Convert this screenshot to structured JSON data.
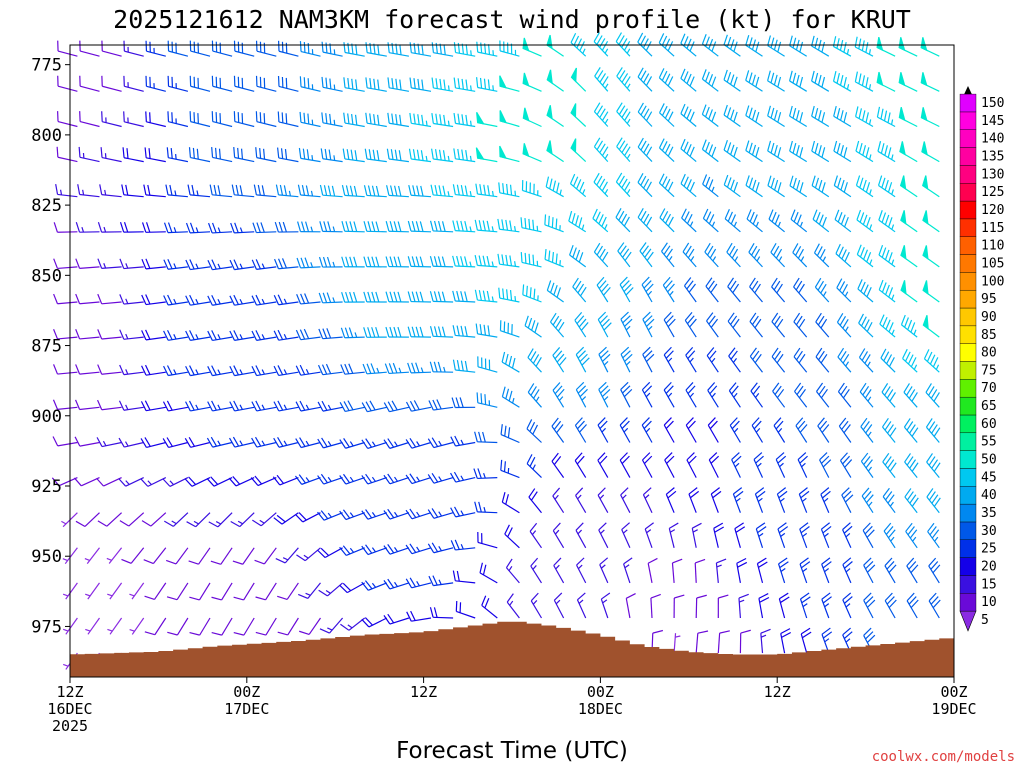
{
  "chart_data": {
    "type": "wind_profile",
    "title": "2025121612 NAM3KM forecast wind profile (kt) for KRUT",
    "xlabel": "Forecast Time (UTC)",
    "credit": "coolwx.com/models",
    "units": "kt",
    "x_range_hours": [
      0,
      60
    ],
    "y_range_hPa": [
      768,
      993
    ],
    "y_ticks": [
      "775",
      "800",
      "825",
      "850",
      "875",
      "900",
      "925",
      "950",
      "975"
    ],
    "x_ticks": [
      {
        "hour": 0,
        "line1": "12Z",
        "line2": "16DEC",
        "line3": "2025"
      },
      {
        "hour": 12,
        "line1": "00Z",
        "line2": "17DEC",
        "line3": ""
      },
      {
        "hour": 24,
        "line1": "12Z",
        "line2": "",
        "line3": ""
      },
      {
        "hour": 36,
        "line1": "00Z",
        "line2": "18DEC",
        "line3": ""
      },
      {
        "hour": 48,
        "line1": "12Z",
        "line2": "",
        "line3": ""
      },
      {
        "hour": 60,
        "line1": "00Z",
        "line2": "19DEC",
        "line3": ""
      }
    ],
    "colorbar": {
      "levels": [
        "5",
        "10",
        "15",
        "20",
        "25",
        "30",
        "35",
        "40",
        "45",
        "50",
        "55",
        "60",
        "65",
        "70",
        "75",
        "80",
        "85",
        "90",
        "95",
        "100",
        "105",
        "110",
        "115",
        "120",
        "125",
        "130",
        "135",
        "140",
        "145",
        "150"
      ],
      "colors": [
        "#8a2be2",
        "#6a0ad8",
        "#3a10e0",
        "#1400e8",
        "#0030e8",
        "#0058e8",
        "#0088f0",
        "#00aaf0",
        "#00c8f0",
        "#00e8d0",
        "#00f0a0",
        "#00f060",
        "#20e820",
        "#60f000",
        "#c0f000",
        "#ffff00",
        "#ffe000",
        "#ffc800",
        "#ffa800",
        "#ff9000",
        "#ff7800",
        "#ff6000",
        "#ff3000",
        "#ff0000",
        "#ff0050",
        "#ff0080",
        "#ff00a0",
        "#ff00c0",
        "#ff00e0",
        "#e000ff"
      ]
    },
    "terrain_surface_hPa": [
      {
        "hour": 0,
        "p": 985
      },
      {
        "hour": 6,
        "p": 984
      },
      {
        "hour": 10,
        "p": 982
      },
      {
        "hour": 16,
        "p": 980
      },
      {
        "hour": 20,
        "p": 978
      },
      {
        "hour": 24,
        "p": 977
      },
      {
        "hour": 27,
        "p": 975
      },
      {
        "hour": 30,
        "p": 973
      },
      {
        "hour": 33,
        "p": 975
      },
      {
        "hour": 36,
        "p": 978
      },
      {
        "hour": 39,
        "p": 982
      },
      {
        "hour": 42,
        "p": 984
      },
      {
        "hour": 45,
        "p": 985
      },
      {
        "hour": 48,
        "p": 985
      },
      {
        "hour": 52,
        "p": 983
      },
      {
        "hour": 56,
        "p": 981
      },
      {
        "hour": 60,
        "p": 979
      }
    ],
    "wind_samples": [
      {
        "hour": 0,
        "p": 775,
        "dir": 285,
        "spd": 10
      },
      {
        "hour": 0,
        "p": 875,
        "dir": 265,
        "spd": 10
      },
      {
        "hour": 0,
        "p": 975,
        "dir": 215,
        "spd": 5
      },
      {
        "hour": 12,
        "p": 775,
        "dir": 285,
        "spd": 30
      },
      {
        "hour": 12,
        "p": 875,
        "dir": 260,
        "spd": 25
      },
      {
        "hour": 12,
        "p": 975,
        "dir": 210,
        "spd": 10
      },
      {
        "hour": 24,
        "p": 775,
        "dir": 280,
        "spd": 40
      },
      {
        "hour": 24,
        "p": 850,
        "dir": 270,
        "spd": 40
      },
      {
        "hour": 24,
        "p": 925,
        "dir": 250,
        "spd": 25
      },
      {
        "hour": 30,
        "p": 800,
        "dir": 275,
        "spd": 50
      },
      {
        "hour": 30,
        "p": 850,
        "dir": 270,
        "spd": 45
      },
      {
        "hour": 36,
        "p": 800,
        "dir": 330,
        "spd": 50
      },
      {
        "hour": 36,
        "p": 875,
        "dir": 340,
        "spd": 40
      },
      {
        "hour": 36,
        "p": 950,
        "dir": 330,
        "spd": 15
      },
      {
        "hour": 42,
        "p": 800,
        "dir": 310,
        "spd": 35
      },
      {
        "hour": 42,
        "p": 900,
        "dir": 330,
        "spd": 20
      },
      {
        "hour": 42,
        "p": 975,
        "dir": 10,
        "spd": 5
      },
      {
        "hour": 48,
        "p": 800,
        "dir": 300,
        "spd": 40
      },
      {
        "hour": 48,
        "p": 875,
        "dir": 320,
        "spd": 30
      },
      {
        "hour": 48,
        "p": 950,
        "dir": 340,
        "spd": 25
      },
      {
        "hour": 60,
        "p": 775,
        "dir": 295,
        "spd": 50
      },
      {
        "hour": 60,
        "p": 850,
        "dir": 305,
        "spd": 50
      },
      {
        "hour": 60,
        "p": 925,
        "dir": 320,
        "spd": 40
      },
      {
        "hour": 60,
        "p": 975,
        "dir": 330,
        "spd": 30
      }
    ]
  }
}
